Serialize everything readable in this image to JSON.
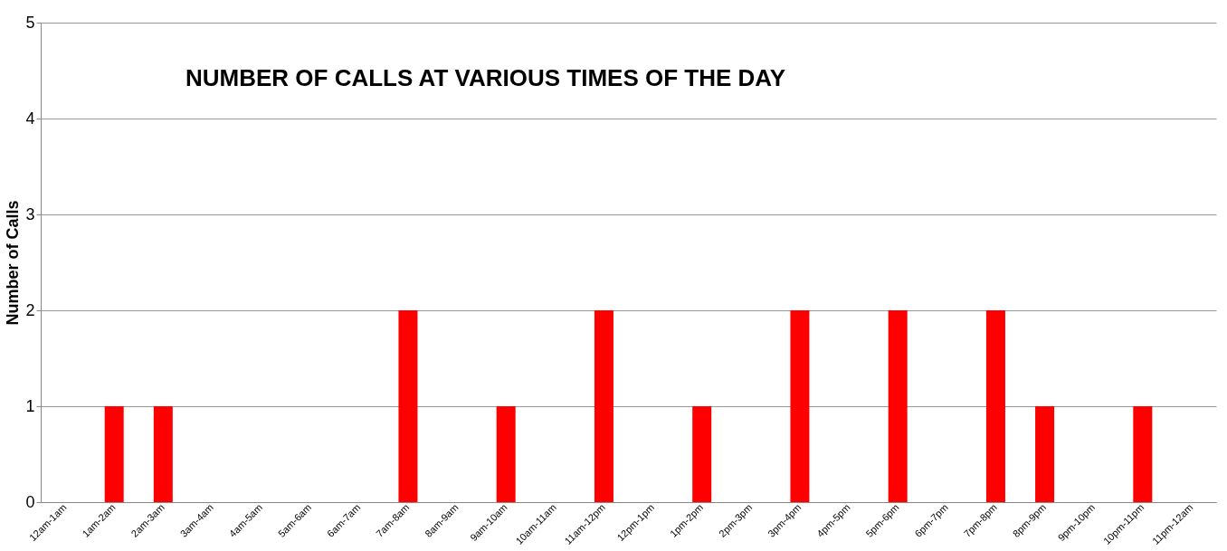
{
  "chart_data": {
    "type": "bar",
    "title": "NUMBER OF CALLS AT VARIOUS TIMES OF THE DAY",
    "ylabel": "Number of Calls",
    "categories": [
      "12am-1am",
      "1am-2am",
      "2am-3am",
      "3am-4am",
      "4am-5am",
      "5am-6am",
      "6am-7am",
      "7am-8am",
      "8am-9am",
      "9am-10am",
      "10am-11am",
      "11am-12pm",
      "12pm-1pm",
      "1pm-2pm",
      "2pm-3pm",
      "3pm-4pm",
      "4pm-5pm",
      "5pm-6pm",
      "6pm-7pm",
      "7pm-8pm",
      "8pm-9pm",
      "9pm-10pm",
      "10pm-11pm",
      "11pm-12am"
    ],
    "values": [
      0,
      1,
      1,
      0,
      0,
      0,
      0,
      2,
      0,
      1,
      0,
      2,
      0,
      1,
      0,
      2,
      0,
      2,
      0,
      2,
      1,
      0,
      1,
      0
    ],
    "color": "#ff0000",
    "ylim": [
      0,
      5
    ],
    "yticks": [
      0,
      1,
      2,
      3,
      4,
      5
    ],
    "grid": "y"
  }
}
